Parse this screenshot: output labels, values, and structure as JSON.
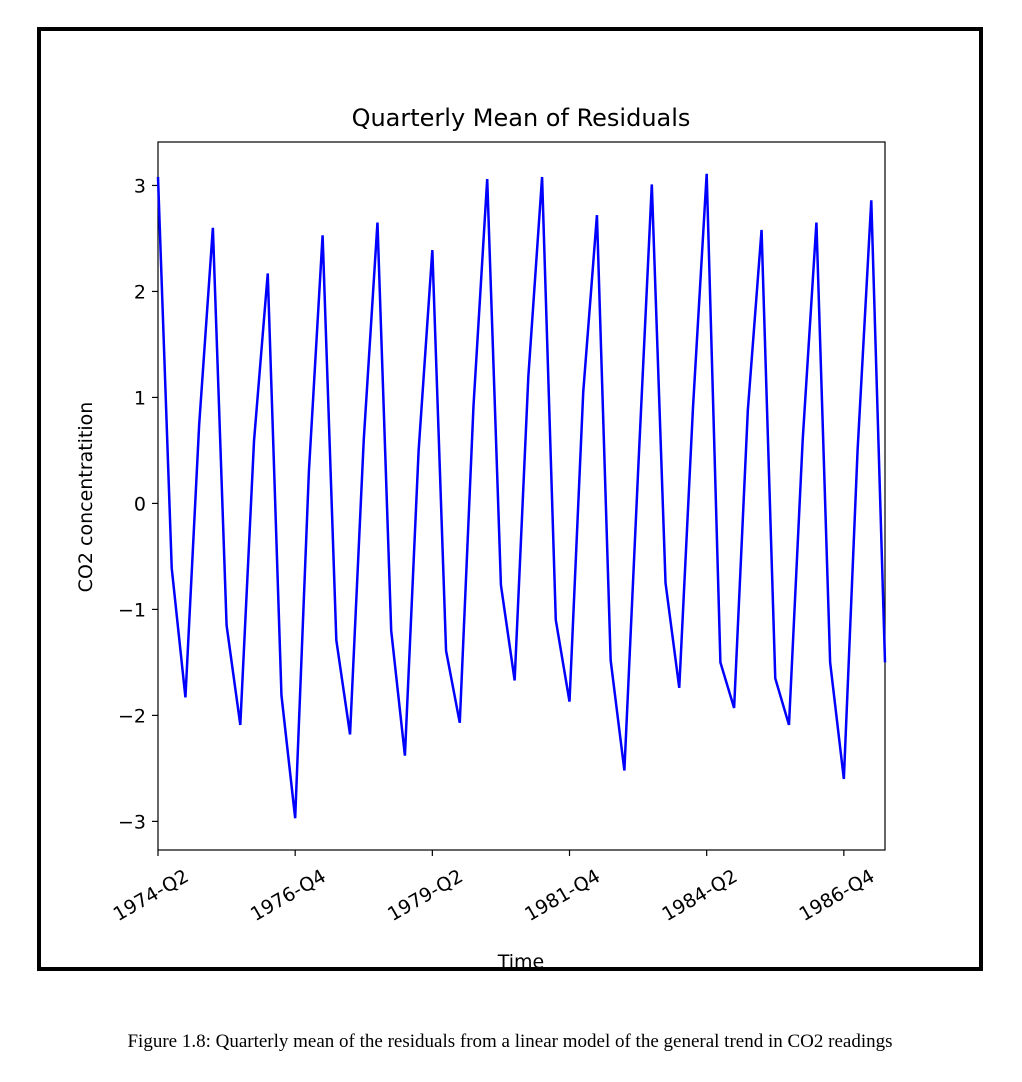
{
  "chart_data": {
    "type": "line",
    "title": "Quarterly Mean of Residuals",
    "xlabel": "Time",
    "ylabel": "CO2 concentratition",
    "categories": [
      "1974-Q2",
      null,
      null,
      null,
      null,
      null,
      null,
      null,
      null,
      null,
      "1976-Q4",
      null,
      null,
      null,
      null,
      null,
      null,
      null,
      null,
      null,
      "1979-Q2",
      null,
      null,
      null,
      null,
      null,
      null,
      null,
      null,
      null,
      "1981-Q4",
      null,
      null,
      null,
      null,
      null,
      null,
      null,
      null,
      null,
      "1984-Q2",
      null,
      null,
      null,
      null,
      null,
      null,
      null,
      null,
      null,
      "1986-Q4",
      null,
      null,
      null
    ],
    "values": [
      3.08,
      -0.61,
      -1.83,
      0.74,
      2.6,
      -1.15,
      -2.09,
      0.59,
      2.17,
      -1.81,
      -2.97,
      0.3,
      2.53,
      -1.29,
      -2.18,
      0.6,
      2.65,
      -1.2,
      -2.38,
      0.5,
      2.39,
      -1.39,
      -2.07,
      0.92,
      3.06,
      -0.77,
      -1.67,
      1.2,
      3.08,
      -1.1,
      -1.87,
      1.05,
      2.72,
      -1.48,
      -2.52,
      0.3,
      3.01,
      -0.75,
      -1.74,
      0.9,
      3.11,
      -1.5,
      -1.93,
      0.88,
      2.58,
      -1.65,
      -2.09,
      0.6,
      2.65,
      -1.5,
      -2.6,
      0.5,
      2.86,
      -1.5
    ],
    "color": "#0000ff",
    "ylim": [
      -3.27,
      3.41
    ],
    "yticks": [
      {
        "value": -3,
        "label": "−3"
      },
      {
        "value": -2,
        "label": "−2"
      },
      {
        "value": -1,
        "label": "−1"
      },
      0,
      1,
      2,
      3
    ],
    "grid": false
  },
  "caption": "Figure 1.8: Quarterly mean of the residuals from a linear model of the general trend in CO2 readings"
}
